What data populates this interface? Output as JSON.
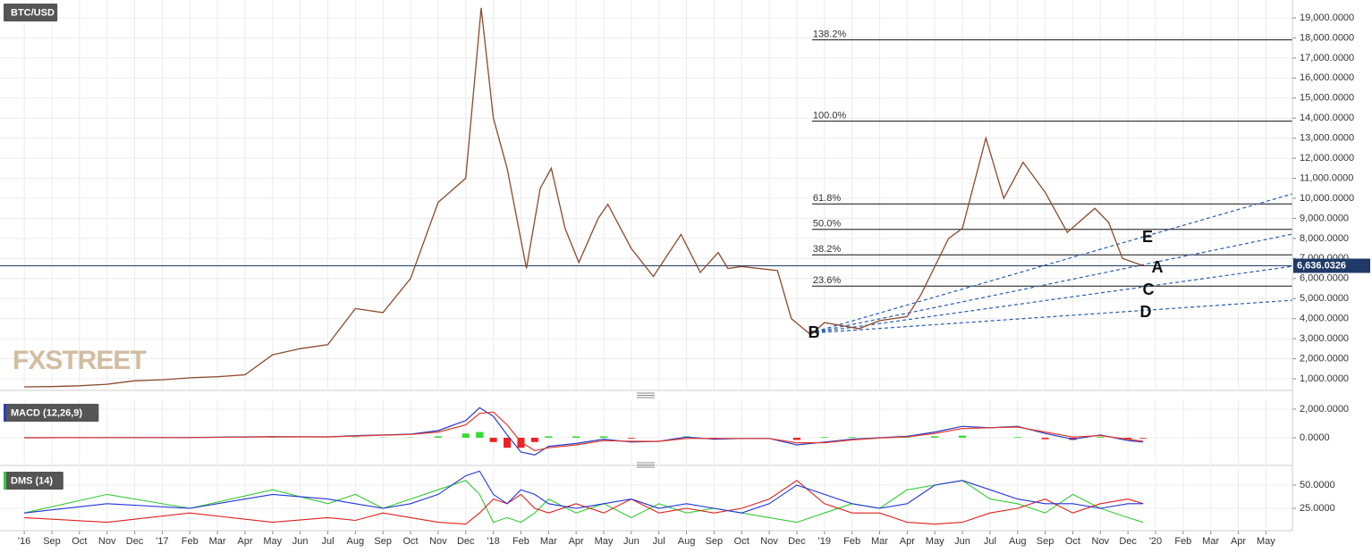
{
  "chart_data": [
    {
      "type": "line",
      "title": "BTC/USD",
      "watermark": "FXSTREET",
      "color": "#8b4a2e",
      "grid": true,
      "x": [
        7,
        8,
        9,
        10,
        11,
        12,
        13,
        14,
        15,
        16,
        17,
        18,
        19,
        20,
        21,
        22,
        23,
        23.56,
        24,
        24.5,
        25.2,
        25.7,
        26.1,
        26.6,
        27.1,
        27.8,
        28.15,
        29,
        29.8,
        30.8,
        31.5,
        32.15,
        32.5,
        33,
        34.3,
        34.8,
        35.5,
        36,
        37.25,
        38,
        39,
        39.5,
        40.5,
        41,
        41.85,
        42.5,
        43.2,
        44,
        44.8,
        45.8,
        46.3,
        46.8,
        47.55
      ],
      "values": [
        600,
        610,
        650,
        730,
        900,
        950,
        1050,
        1100,
        1200,
        2200,
        2500,
        2700,
        4500,
        4300,
        6000,
        9800,
        11000,
        19500,
        14000,
        11500,
        6500,
        10500,
        11500,
        8500,
        6800,
        9000,
        9700,
        7500,
        6100,
        8200,
        6300,
        7300,
        6500,
        6600,
        6400,
        4000,
        3200,
        3800,
        3500,
        3900,
        4100,
        5200,
        8000,
        8500,
        13000,
        10000,
        11800,
        10300,
        8300,
        9500,
        8800,
        7000,
        6636.0326
      ],
      "last_price": {
        "value": 6636.0326,
        "label": "6,636.0326"
      },
      "fib_start_x": 35.55,
      "fib_levels": [
        {
          "value": 17900,
          "label": "138.2%"
        },
        {
          "value": 13850,
          "label": "100.0%"
        },
        {
          "value": 9720,
          "label": "61.8%"
        },
        {
          "value": 8450,
          "label": "50.0%"
        },
        {
          "value": 7180,
          "label": "38.2%"
        },
        {
          "value": 5620,
          "label": "23.6%"
        }
      ],
      "trendlines": [
        {
          "x": [
            35.46,
            52.96
          ],
          "values": [
            3270,
            10220
          ]
        },
        {
          "x": [
            35.46,
            52.96
          ],
          "values": [
            3270,
            8216
          ]
        },
        {
          "x": [
            35.46,
            52.96
          ],
          "values": [
            3270,
            6611
          ]
        },
        {
          "x": [
            35.46,
            52.96
          ],
          "values": [
            3270,
            4918
          ]
        }
      ],
      "annotations": [
        "E",
        "A",
        "C",
        "D",
        "B"
      ],
      "xlim": [
        6.12,
        52.96
      ],
      "xticks": [
        {
          "value": 7,
          "label": "'16"
        },
        {
          "value": 8,
          "label": "Sep"
        },
        {
          "value": 9,
          "label": "Oct"
        },
        {
          "value": 10,
          "label": "Nov"
        },
        {
          "value": 11,
          "label": "Dec"
        },
        {
          "value": 12,
          "label": "'17"
        },
        {
          "value": 13,
          "label": "Feb"
        },
        {
          "value": 14,
          "label": "Mar"
        },
        {
          "value": 15,
          "label": "Apr"
        },
        {
          "value": 16,
          "label": "May"
        },
        {
          "value": 17,
          "label": "Jun"
        },
        {
          "value": 18,
          "label": "Jul"
        },
        {
          "value": 19,
          "label": "Aug"
        },
        {
          "value": 20,
          "label": "Sep"
        },
        {
          "value": 21,
          "label": "Oct"
        },
        {
          "value": 22,
          "label": "Nov"
        },
        {
          "value": 23,
          "label": "Dec"
        },
        {
          "value": 24,
          "label": "'18"
        },
        {
          "value": 25,
          "label": "Feb"
        },
        {
          "value": 26,
          "label": "Mar"
        },
        {
          "value": 27,
          "label": "Apr"
        },
        {
          "value": 28,
          "label": "May"
        },
        {
          "value": 29,
          "label": "Jun"
        },
        {
          "value": 30,
          "label": "Jul"
        },
        {
          "value": 31,
          "label": "Aug"
        },
        {
          "value": 32,
          "label": "Sep"
        },
        {
          "value": 33,
          "label": "Oct"
        },
        {
          "value": 34,
          "label": "Nov"
        },
        {
          "value": 35,
          "label": "Dec"
        },
        {
          "value": 36,
          "label": "'19"
        },
        {
          "value": 37,
          "label": "Feb"
        },
        {
          "value": 38,
          "label": "Mar"
        },
        {
          "value": 39,
          "label": "Apr"
        },
        {
          "value": 40,
          "label": "May"
        },
        {
          "value": 41,
          "label": "Jun"
        },
        {
          "value": 42,
          "label": "Jul"
        },
        {
          "value": 43,
          "label": "Aug"
        },
        {
          "value": 44,
          "label": "Sep"
        },
        {
          "value": 45,
          "label": "Oct"
        },
        {
          "value": 46,
          "label": "Nov"
        },
        {
          "value": 47,
          "label": "Dec"
        },
        {
          "value": 48,
          "label": "'20"
        },
        {
          "value": 49,
          "label": "Feb"
        },
        {
          "value": 50,
          "label": "Mar"
        },
        {
          "value": 51,
          "label": "Apr"
        },
        {
          "value": 52,
          "label": "May"
        }
      ],
      "ylim": [
        465,
        19890
      ],
      "yticks": [
        {
          "value": 1000,
          "label": "1,000.0000"
        },
        {
          "value": 2000,
          "label": "2,000.0000"
        },
        {
          "value": 3000,
          "label": "3,000.0000"
        },
        {
          "value": 4000,
          "label": "4,000.0000"
        },
        {
          "value": 5000,
          "label": "5,000.0000"
        },
        {
          "value": 6000,
          "label": "6,000.0000"
        },
        {
          "value": 7000,
          "label": "7,000.0000"
        },
        {
          "value": 8000,
          "label": "8,000.0000"
        },
        {
          "value": 9000,
          "label": "9,000.0000"
        },
        {
          "value": 10000,
          "label": "10,000.0000"
        },
        {
          "value": 11000,
          "label": "11,000.0000"
        },
        {
          "value": 12000,
          "label": "12,000.0000"
        },
        {
          "value": 13000,
          "label": "13,000.0000"
        },
        {
          "value": 14000,
          "label": "14,000.0000"
        },
        {
          "value": 15000,
          "label": "15,000.0000"
        },
        {
          "value": 16000,
          "label": "16,000.0000"
        },
        {
          "value": 17000,
          "label": "17,000.0000"
        },
        {
          "value": 18000,
          "label": "18,000.0000"
        },
        {
          "value": 19000,
          "label": "19,000.0000"
        }
      ]
    },
    {
      "type": "macd",
      "title": "MACD (12,26,9)",
      "title_color": "#2a3cc8",
      "grid": true,
      "x": [
        7,
        10,
        13,
        16,
        18,
        19,
        20,
        21,
        22,
        23,
        23.5,
        24,
        24.5,
        25,
        25.5,
        26,
        27,
        28,
        29,
        30,
        31,
        32,
        33,
        34,
        35,
        36,
        37,
        38,
        39,
        40,
        41,
        42,
        43,
        44,
        45,
        46,
        47,
        47.55
      ],
      "series": [
        {
          "color": "#2a3cc8",
          "values": [
            0,
            10,
            20,
            80,
            60,
            150,
            200,
            250,
            500,
            1200,
            2100,
            1500,
            200,
            -1000,
            -1200,
            -600,
            -400,
            -100,
            -300,
            -250,
            50,
            -100,
            -50,
            -50,
            -500,
            -300,
            -100,
            0,
            100,
            400,
            800,
            700,
            800,
            300,
            -100,
            200,
            -200,
            -300
          ]
        },
        {
          "color": "#e0382b",
          "values": [
            0,
            10,
            15,
            60,
            65,
            120,
            180,
            230,
            400,
            900,
            1700,
            1800,
            900,
            -300,
            -900,
            -700,
            -500,
            -200,
            -250,
            -250,
            -50,
            -50,
            -50,
            -50,
            -350,
            -350,
            -150,
            -20,
            60,
            300,
            650,
            700,
            750,
            400,
            50,
            150,
            -100,
            -250
          ]
        }
      ],
      "histogram": {
        "up_color": "#33dd33",
        "down_color": "#ee2222",
        "values": [
          0,
          0,
          5,
          20,
          -5,
          30,
          20,
          20,
          100,
          300,
          400,
          -300,
          -700,
          -700,
          -300,
          100,
          100,
          100,
          -50,
          0,
          100,
          -50,
          0,
          0,
          -150,
          50,
          50,
          20,
          40,
          100,
          150,
          0,
          50,
          -100,
          -150,
          50,
          -100,
          -50
        ]
      },
      "xlim": [
        6.12,
        52.96
      ],
      "ylim": [
        -1750,
        2625
      ],
      "yticks": [
        {
          "value": 0,
          "label": "0.0000"
        },
        {
          "value": 2000,
          "label": "2,000.0000"
        }
      ]
    },
    {
      "type": "dms",
      "title": "DMS (14)",
      "title_color": "#33cc33",
      "grid": true,
      "x": [
        7,
        10,
        13,
        16,
        18,
        19,
        20,
        21,
        22,
        23,
        23.5,
        24,
        24.5,
        25,
        25.5,
        26,
        27,
        28,
        29,
        30,
        31,
        32,
        33,
        34,
        35,
        36,
        37,
        38,
        39,
        40,
        41,
        42,
        43,
        44,
        45,
        46,
        47,
        47.55
      ],
      "series": [
        {
          "color": "#33cc33",
          "values": [
            20,
            40,
            25,
            45,
            30,
            40,
            25,
            35,
            45,
            55,
            40,
            10,
            15,
            10,
            20,
            35,
            20,
            30,
            15,
            30,
            20,
            25,
            20,
            15,
            10,
            20,
            30,
            25,
            45,
            50,
            55,
            35,
            30,
            20,
            40,
            25,
            15,
            10
          ]
        },
        {
          "color": "#e0201b",
          "values": [
            15,
            10,
            20,
            10,
            15,
            12,
            20,
            15,
            10,
            8,
            20,
            35,
            30,
            40,
            25,
            20,
            30,
            20,
            35,
            20,
            25,
            20,
            25,
            35,
            55,
            30,
            20,
            20,
            10,
            8,
            10,
            20,
            25,
            35,
            20,
            30,
            35,
            30
          ]
        },
        {
          "color": "#2233dd",
          "values": [
            20,
            30,
            25,
            40,
            35,
            30,
            25,
            30,
            40,
            60,
            65,
            40,
            30,
            45,
            40,
            30,
            25,
            30,
            35,
            25,
            30,
            25,
            20,
            30,
            50,
            40,
            30,
            25,
            30,
            50,
            55,
            45,
            35,
            30,
            30,
            25,
            30,
            30
          ]
        }
      ],
      "xlim": [
        6.12,
        52.96
      ],
      "ylim": [
        2.9,
        68.3
      ],
      "yticks": [
        {
          "value": 25,
          "label": "25.0000"
        },
        {
          "value": 50,
          "label": "50.0000"
        }
      ]
    }
  ]
}
